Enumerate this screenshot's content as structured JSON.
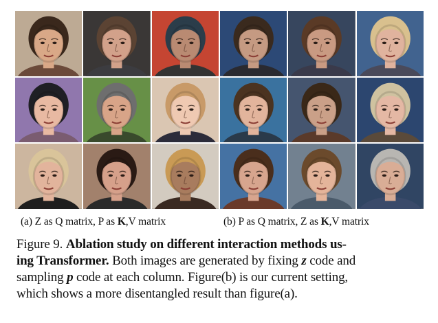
{
  "subfigure_a": {
    "label": "(a) Z as Q matrix, P as",
    "bold": "K",
    "rest": ",V matrix",
    "faces": [
      {
        "bg": "#b9a58e",
        "skin": "#d9a887",
        "hair": "#3a281c",
        "shirt": "#6b4a3a"
      },
      {
        "bg": "#2e2b2a",
        "skin": "#d2a18a",
        "hair": "#5b4333",
        "shirt": "#3c3c40"
      },
      {
        "bg": "#c23a26",
        "skin": "#b98a72",
        "hair": "#2b3d4a",
        "shirt": "#333333"
      },
      {
        "bg": "#8a6fa8",
        "skin": "#e8b9a2",
        "hair": "#1f1f24",
        "shirt": "#7a5c70"
      },
      {
        "bg": "#5e8a3c",
        "skin": "#d8a488",
        "hair": "#6e6e6e",
        "shirt": "#394a2c"
      },
      {
        "bg": "#d8c3ae",
        "skin": "#efc9b2",
        "hair": "#c89a68",
        "shirt": "#2c2c3a"
      },
      {
        "bg": "#c9b29a",
        "skin": "#e2b49c",
        "hair": "#d9c49a",
        "shirt": "#1e1e1e"
      },
      {
        "bg": "#9d7a63",
        "skin": "#d6a08a",
        "hair": "#2a1a14",
        "shirt": "#2a2a2a"
      },
      {
        "bg": "#d1c8bd",
        "skin": "#a87c5e",
        "hair": "#c99a55",
        "shirt": "#3a2a22"
      }
    ]
  },
  "subfigure_b": {
    "label": "(b) P as Q matrix, Z as",
    "bold": "K",
    "rest": ",V matrix",
    "faces": [
      {
        "bg": "#1f3e6e",
        "skin": "#c59a82",
        "hair": "#3a2a1e",
        "shirt": "#2a2a30"
      },
      {
        "bg": "#2b3b54",
        "skin": "#c99a82",
        "hair": "#5a3a26",
        "shirt": "#3a3a4a"
      },
      {
        "bg": "#365a88",
        "skin": "#e0b39e",
        "hair": "#d9c08e",
        "shirt": "#4a4a5a"
      },
      {
        "bg": "#2e6a9a",
        "skin": "#e2b49c",
        "hair": "#4b3320",
        "shirt": "#2a3a4a"
      },
      {
        "bg": "#3a4b66",
        "skin": "#caa088",
        "hair": "#3a2818",
        "shirt": "#5a3a2a"
      },
      {
        "bg": "#1f3b66",
        "skin": "#e4b8a4",
        "hair": "#cfc2a0",
        "shirt": "#5a4a3a"
      },
      {
        "bg": "#3a6a9e",
        "skin": "#d7a58e",
        "hair": "#4a2e1c",
        "shirt": "#6a3a2a"
      },
      {
        "bg": "#6a7a8a",
        "skin": "#e4b49a",
        "hair": "#6b4a2c",
        "shirt": "#4a5a6a"
      },
      {
        "bg": "#243a5a",
        "skin": "#d9ad96",
        "hair": "#b8b6b2",
        "shirt": "#3a4a6a"
      }
    ]
  },
  "caption": {
    "figure_label": "Figure 9.",
    "title_line1": "Ablation study on different interaction methods us-",
    "title_line2": "ing Transformer.",
    "text_line2": " Both images are generated by fixing ",
    "var_z": "z",
    "text_line2b": " code and",
    "text_line3a": "sampling ",
    "var_p": "p",
    "text_line3b": " code at each column. Figure(b) is our current setting,",
    "text_line4": "which shows a more disentangled result than figure(a)."
  }
}
